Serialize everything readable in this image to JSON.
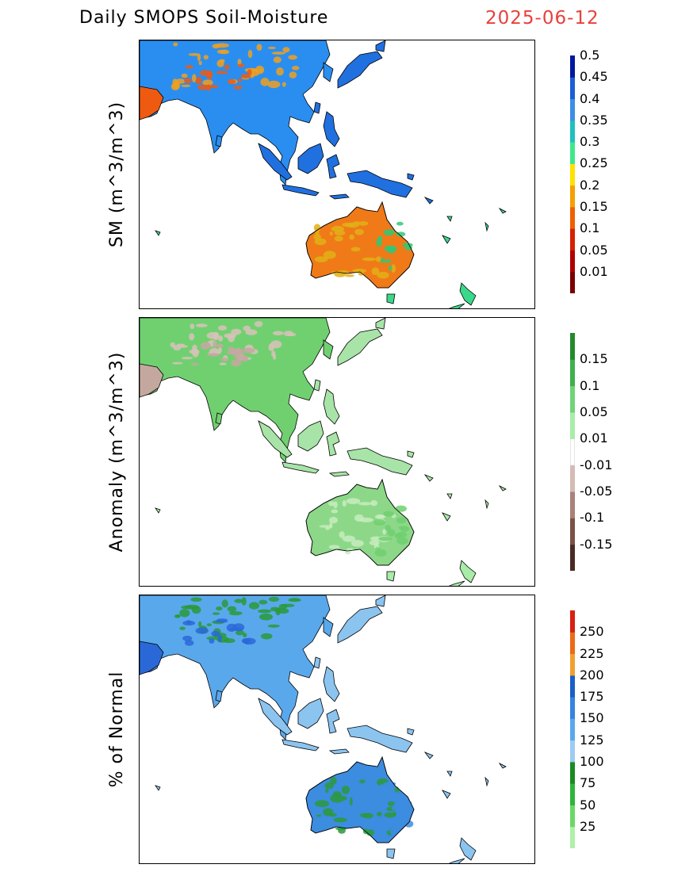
{
  "header": {
    "title": "Daily SMOPS Soil-Moisture",
    "date": "2025-06-12",
    "date_color": "#e8403a"
  },
  "panels": [
    {
      "id": "sm",
      "ylabel": "SM (m^3/m^3)",
      "colorbar": {
        "colors": [
          "#7a0000",
          "#b00000",
          "#d62000",
          "#ee6000",
          "#f5a000",
          "#ffe000",
          "#3ee88a",
          "#1ec0c0",
          "#3c8ee6",
          "#1a5ed6",
          "#0018a0"
        ],
        "labels": [
          "0.01",
          "0.05",
          "0.1",
          "0.15",
          "0.2",
          "0.25",
          "0.3",
          "0.35",
          "0.4",
          "0.45",
          "0.5"
        ]
      },
      "land_palette": {
        "australia": "#f07a18",
        "australia_edge": "#e2b018",
        "asia": "#2a8ef0",
        "asia_dry": "#f0a020",
        "himalaya": "#ee5a10",
        "islands": "#2070e0",
        "east_aus": "#30c878",
        "nz": "#3ad88a"
      }
    },
    {
      "id": "anomaly",
      "ylabel": "Anomaly (m^3/m^3)",
      "colorbar": {
        "colors": [
          "#4a2a24",
          "#7c5246",
          "#a8827a",
          "#d4bcb4",
          "#ffffff",
          "#a8ecaa",
          "#6ed476",
          "#3eb04c",
          "#238a2c"
        ],
        "labels": [
          "-0.15",
          "-0.1",
          "-0.05",
          "-0.01",
          "0.01",
          "0.05",
          "0.1",
          "0.15"
        ]
      },
      "land_palette": {
        "australia": "#8cd888",
        "australia_edge": "#c8ecc0",
        "asia": "#70d070",
        "asia_dry": "#d8c2ba",
        "himalaya": "#c4a8a0",
        "islands": "#a8e4a8",
        "east_aus": "#70d070",
        "nz": "#a8eca8"
      }
    },
    {
      "id": "pct_normal",
      "ylabel": "% of Normal",
      "colorbar": {
        "colors": [
          "#b0f0a8",
          "#6ad868",
          "#2fb43c",
          "#1a8a22",
          "#9ecbf2",
          "#5aa8ec",
          "#3684e0",
          "#1a5ec8",
          "#f0a030",
          "#ec6a18",
          "#d82010"
        ],
        "labels": [
          "25",
          "50",
          "75",
          "100",
          "125",
          "150",
          "175",
          "200",
          "225",
          "250"
        ]
      },
      "land_palette": {
        "australia": "#3c8ce0",
        "australia_edge": "#2a9a3a",
        "asia": "#5aa8ec",
        "asia_dry": "#2a9a3a",
        "himalaya": "#2a68d8",
        "islands": "#8cc4f0",
        "east_aus": "#3c8ce0",
        "nz": "#8cc4f0"
      }
    }
  ]
}
